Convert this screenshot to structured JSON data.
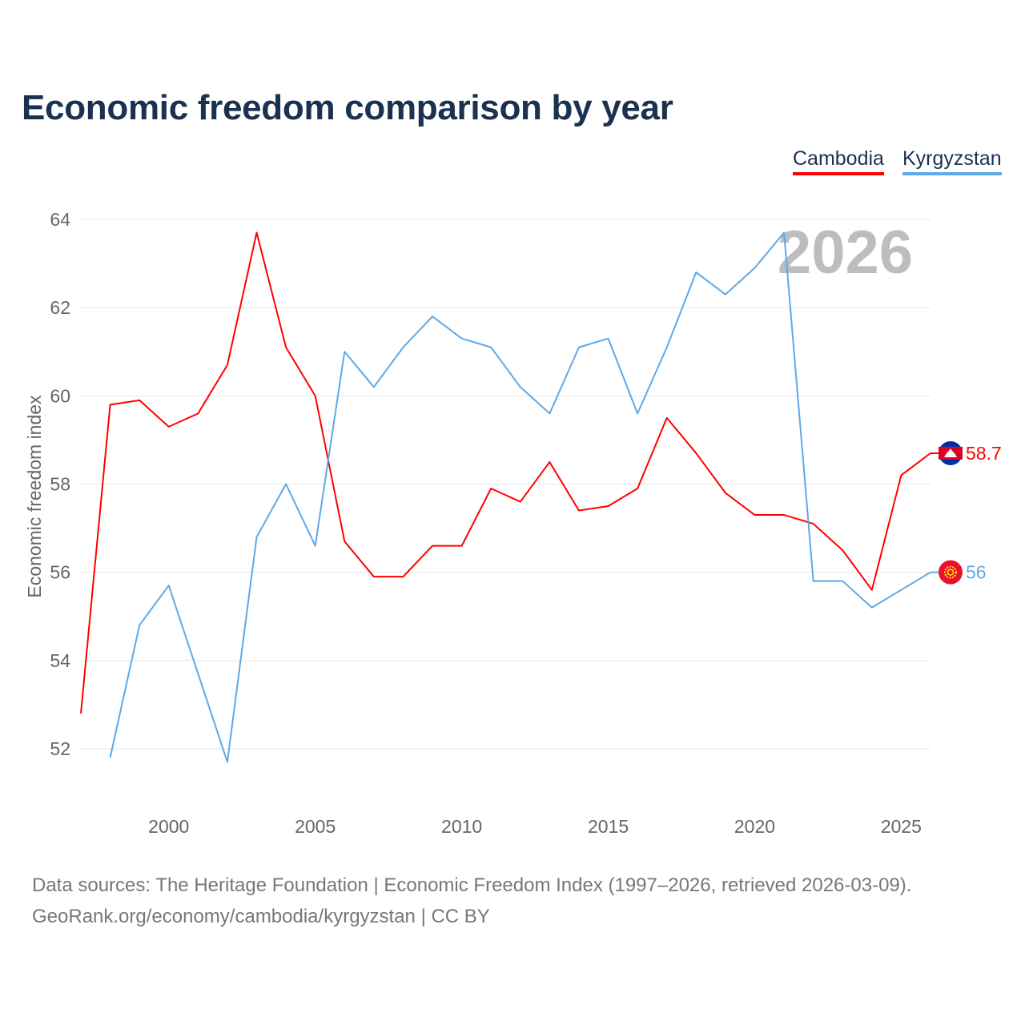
{
  "chart_data": {
    "type": "line",
    "title": "Economic freedom comparison by year",
    "xlabel": "",
    "ylabel": "Economic freedom index",
    "xlim": [
      1997,
      2026
    ],
    "ylim": [
      52,
      64
    ],
    "yticks": [
      52,
      54,
      56,
      58,
      60,
      62,
      64
    ],
    "xticks": [
      2000,
      2005,
      2010,
      2015,
      2020,
      2025
    ],
    "grid": true,
    "legend_position": "top-right",
    "watermark_year": "2026",
    "series": [
      {
        "name": "Cambodia",
        "color": "#ff0000",
        "end_label": "58.7",
        "flag": "cambodia-flag",
        "x": [
          1997,
          1998,
          1999,
          2000,
          2001,
          2002,
          2003,
          2004,
          2005,
          2006,
          2007,
          2008,
          2009,
          2010,
          2011,
          2012,
          2013,
          2014,
          2015,
          2016,
          2017,
          2018,
          2019,
          2020,
          2021,
          2022,
          2023,
          2024,
          2025,
          2026
        ],
        "values": [
          52.8,
          59.8,
          59.9,
          59.3,
          59.6,
          60.7,
          63.7,
          61.1,
          60.0,
          56.7,
          55.9,
          55.9,
          56.6,
          56.6,
          57.9,
          57.6,
          58.5,
          57.4,
          57.5,
          57.9,
          59.5,
          58.7,
          57.8,
          57.3,
          57.3,
          57.1,
          56.5,
          55.6,
          58.2,
          58.7
        ]
      },
      {
        "name": "Kyrgyzstan",
        "color": "#5fa8e8",
        "end_label": "56",
        "flag": "kyrgyzstan-flag",
        "x": [
          1998,
          1999,
          2000,
          2001,
          2002,
          2003,
          2004,
          2005,
          2006,
          2007,
          2008,
          2009,
          2010,
          2011,
          2012,
          2013,
          2014,
          2015,
          2016,
          2017,
          2018,
          2019,
          2020,
          2021,
          2022,
          2023,
          2024,
          2025,
          2026
        ],
        "values": [
          51.8,
          54.8,
          55.7,
          53.7,
          51.7,
          56.8,
          58.0,
          56.6,
          61.0,
          60.2,
          61.1,
          61.8,
          61.3,
          61.1,
          60.2,
          59.6,
          61.1,
          61.3,
          59.6,
          61.1,
          62.8,
          62.3,
          62.9,
          63.7,
          55.8,
          55.8,
          55.2,
          55.6,
          56.0
        ]
      }
    ]
  },
  "footer": {
    "line1": "Data sources: The Heritage Foundation | Economic Freedom Index (1997–2026, retrieved 2026-03-09).",
    "line2": "GeoRank.org/economy/cambodia/kyrgyzstan | CC BY"
  }
}
